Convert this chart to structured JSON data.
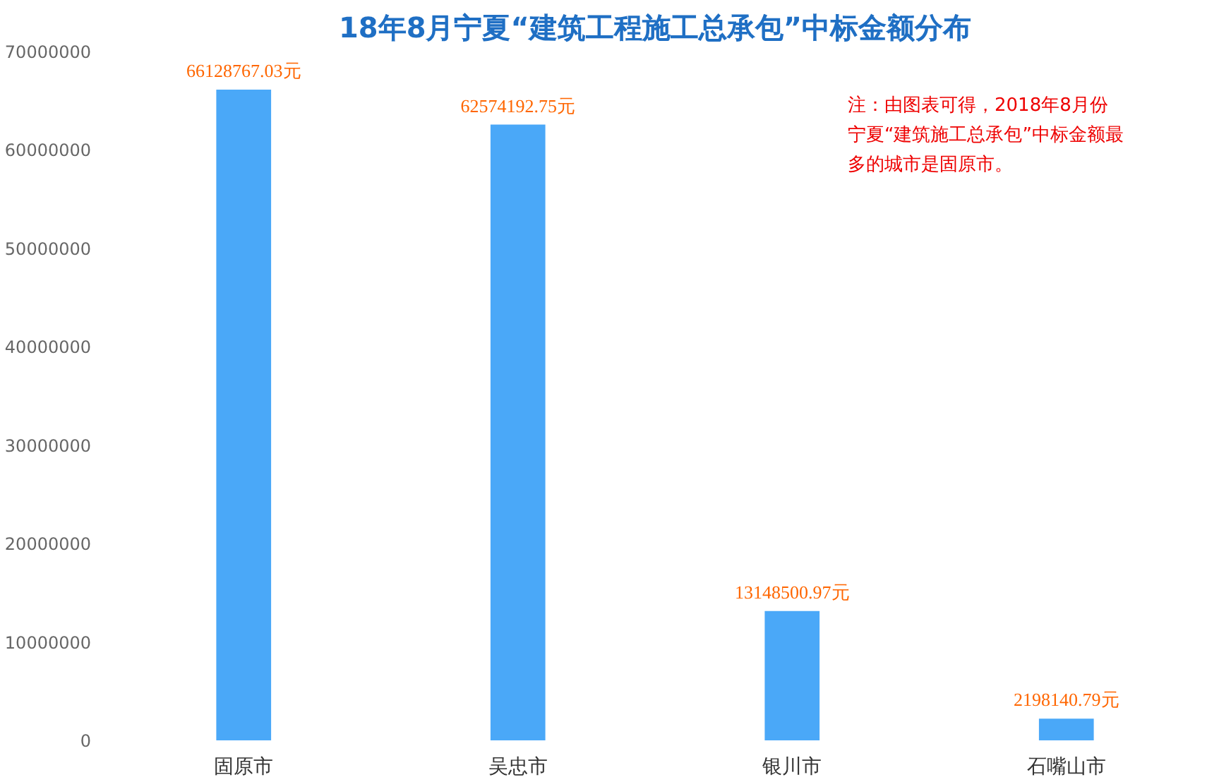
{
  "chart_data": {
    "type": "bar",
    "title": "18年8月宁夏“建筑工程施工总承包”中标金额分布",
    "categories": [
      "固原市",
      "吴忠市",
      "银川市",
      "石嘴山市"
    ],
    "values": [
      66128767.03,
      62574192.75,
      13148500.97,
      2198140.79
    ],
    "value_labels": [
      "66128767.03元",
      "62574192.75元",
      "13148500.97元",
      "2198140.79元"
    ],
    "color": "#4aa8f8",
    "ylim": [
      0,
      70000000
    ],
    "yticks": [
      0,
      10000000,
      20000000,
      30000000,
      40000000,
      50000000,
      60000000,
      70000000
    ],
    "annotations": [
      "注：由图表可得，2018年8月份宁夏“建筑施工总承包”中标金额最多的城市是固原市。"
    ]
  }
}
